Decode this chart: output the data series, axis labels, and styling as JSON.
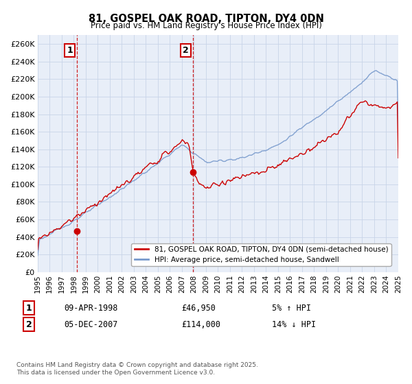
{
  "title": "81, GOSPEL OAK ROAD, TIPTON, DY4 0DN",
  "subtitle": "Price paid vs. HM Land Registry's House Price Index (HPI)",
  "legend_line1": "81, GOSPEL OAK ROAD, TIPTON, DY4 0DN (semi-detached house)",
  "legend_line2": "HPI: Average price, semi-detached house, Sandwell",
  "annotation1_date": "09-APR-1998",
  "annotation1_price": "£46,950",
  "annotation1_pct": "5% ↑ HPI",
  "annotation2_date": "05-DEC-2007",
  "annotation2_price": "£114,000",
  "annotation2_pct": "14% ↓ HPI",
  "copyright": "Contains HM Land Registry data © Crown copyright and database right 2025.\nThis data is licensed under the Open Government Licence v3.0.",
  "ylim": [
    0,
    270000
  ],
  "yticks": [
    0,
    20000,
    40000,
    60000,
    80000,
    100000,
    120000,
    140000,
    160000,
    180000,
    200000,
    220000,
    240000,
    260000
  ],
  "ytick_labels": [
    "£0",
    "£20K",
    "£40K",
    "£60K",
    "£80K",
    "£100K",
    "£120K",
    "£140K",
    "£160K",
    "£180K",
    "£200K",
    "£220K",
    "£240K",
    "£260K"
  ],
  "red_line_color": "#cc0000",
  "blue_line_color": "#7799cc",
  "plot_bg_color": "#e8eef8",
  "background_color": "#ffffff",
  "grid_color": "#c8d4e8",
  "sale1_year": 1998.27,
  "sale1_price": 46950,
  "sale2_year": 2007.92,
  "sale2_price": 114000
}
